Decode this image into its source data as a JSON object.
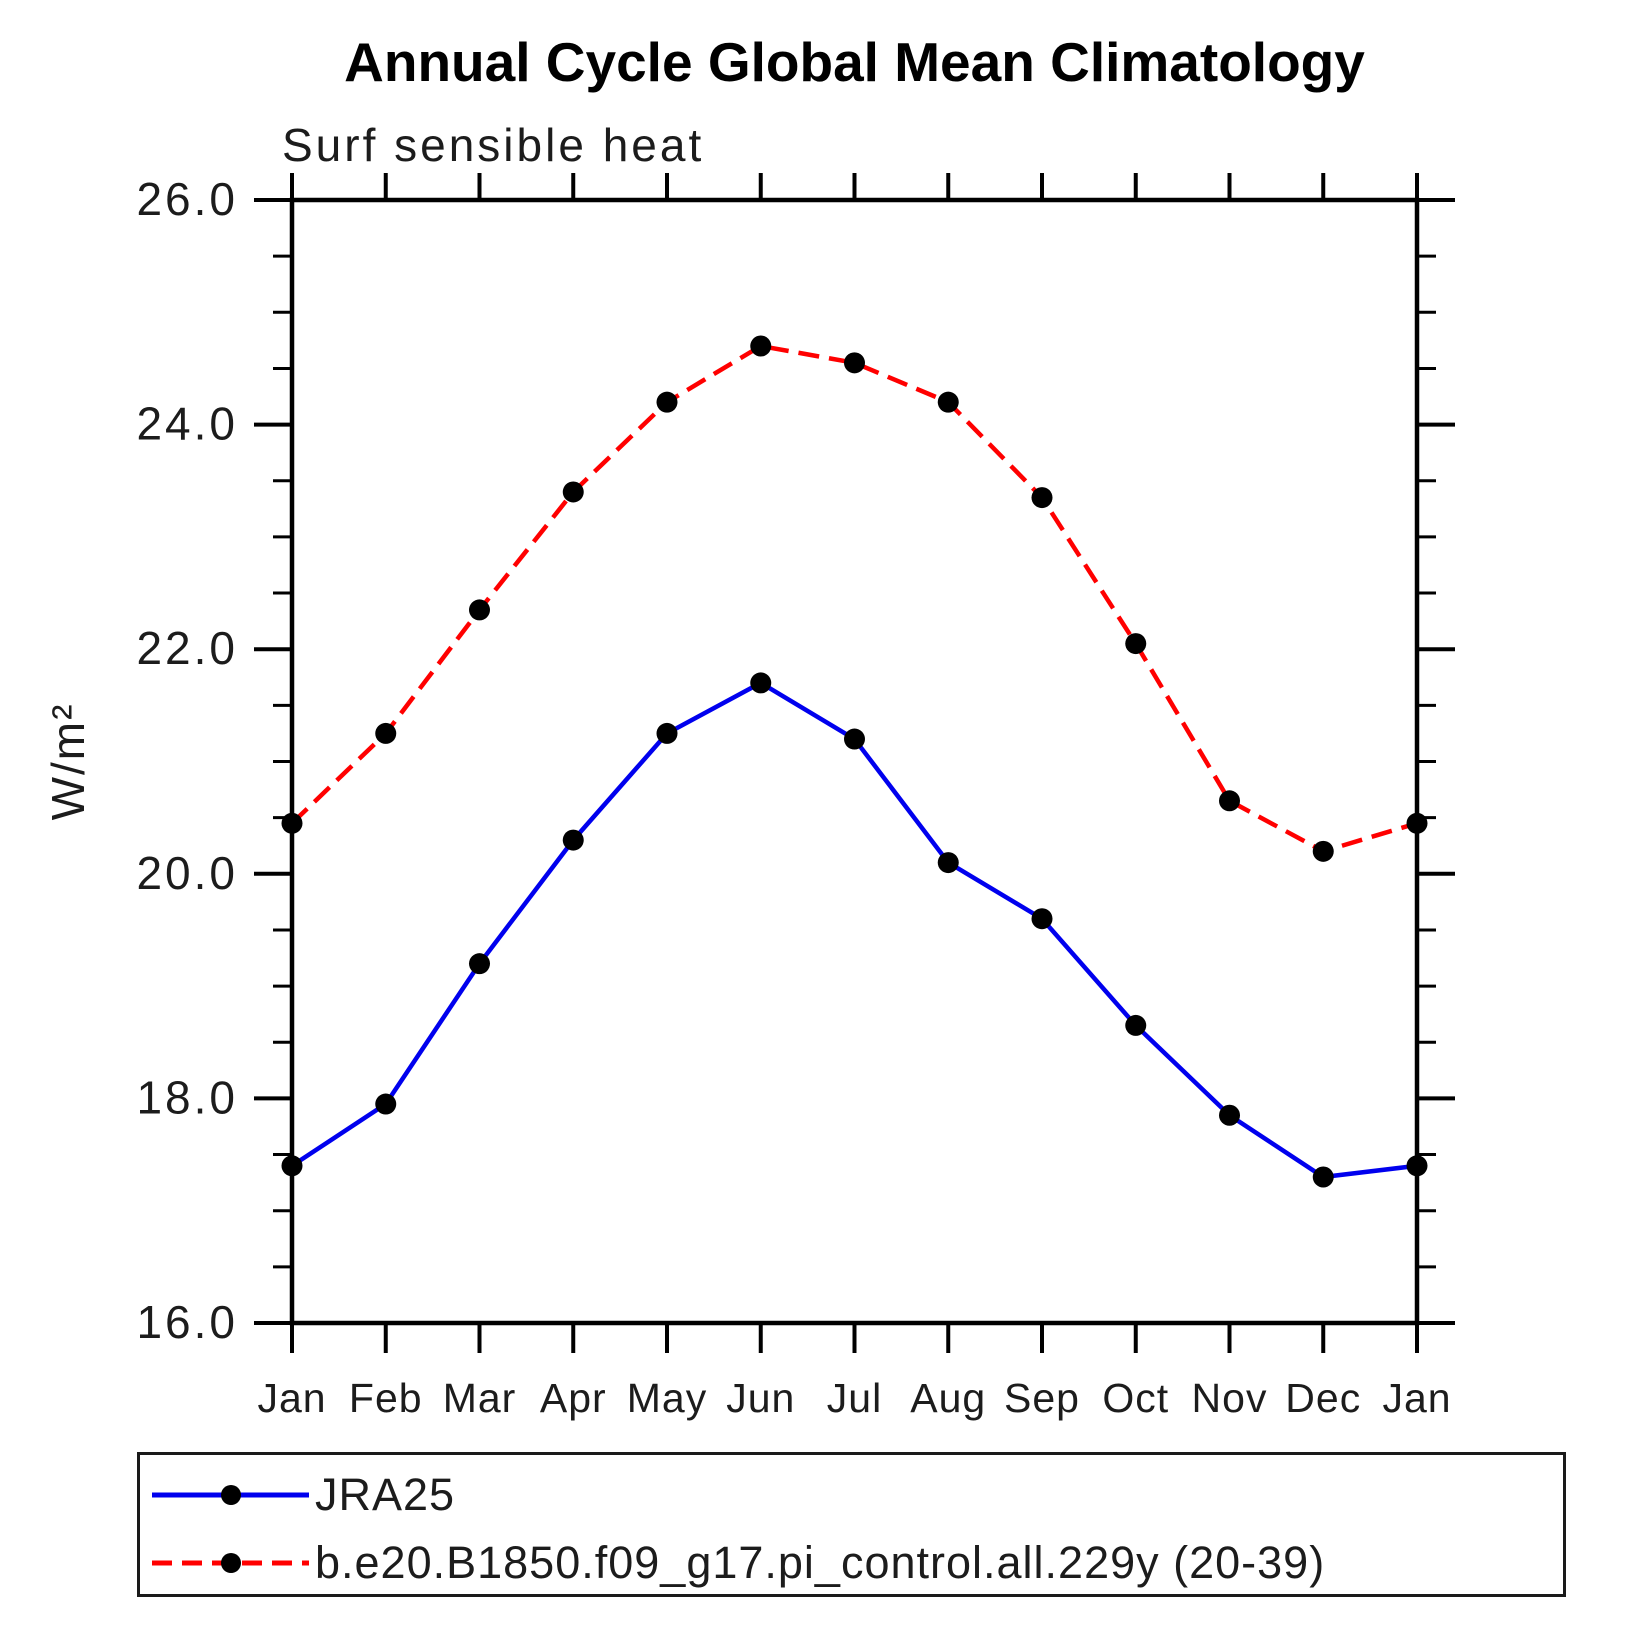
{
  "title": "Annual Cycle Global Mean Climatology",
  "subtitle": "Surf sensible heat",
  "legend": {
    "entries": [
      {
        "label": "JRA25",
        "line_color": "#0000ee",
        "line_style": "solid",
        "marker": "black-dot"
      },
      {
        "label": "b.e20.B1850.f09_g17.pi_control.all.229y (20-39)",
        "line_color": "#ff0000",
        "line_style": "dashed",
        "marker": "black-dot"
      }
    ]
  },
  "chart_data": {
    "type": "line",
    "title": "Annual Cycle Global Mean Climatology",
    "subtitle": "Surf sensible heat",
    "ylabel": "W/m²",
    "xlabel": "",
    "categories": [
      "Jan",
      "Feb",
      "Mar",
      "Apr",
      "May",
      "Jun",
      "Jul",
      "Aug",
      "Sep",
      "Oct",
      "Nov",
      "Dec",
      "Jan"
    ],
    "ylim": [
      16.0,
      26.0
    ],
    "y_major_step": 2.0,
    "y_minor_step": 0.5,
    "y_tick_labels": [
      "16.0",
      "18.0",
      "20.0",
      "22.0",
      "24.0",
      "26.0"
    ],
    "grid": false,
    "legend_position": "bottom",
    "marker_color": "#000000",
    "series": [
      {
        "name": "JRA25",
        "color": "#0000ee",
        "style": "solid",
        "values": [
          17.4,
          17.95,
          19.2,
          20.3,
          21.25,
          21.7,
          21.2,
          20.1,
          19.6,
          18.65,
          17.85,
          17.3,
          17.4
        ]
      },
      {
        "name": "b.e20.B1850.f09_g17.pi_control.all.229y (20-39)",
        "color": "#ff0000",
        "style": "dashed",
        "values": [
          20.45,
          21.25,
          22.35,
          23.4,
          24.2,
          24.7,
          24.55,
          24.2,
          23.35,
          22.05,
          20.65,
          20.2,
          20.45
        ]
      }
    ]
  }
}
